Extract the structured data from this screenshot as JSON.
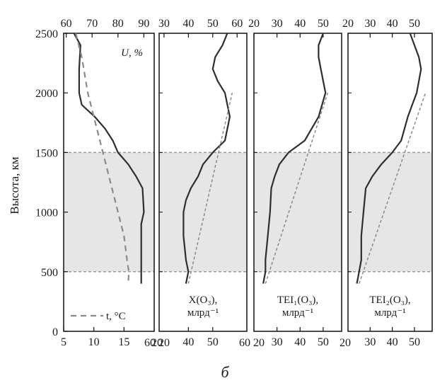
{
  "figure_label": "б",
  "colors": {
    "line": "#2e2e2e",
    "dashed_line": "#8a8a8a",
    "band_fill": "#e6e6e6",
    "band_border": "#9a9a9a",
    "frame": "#111111"
  },
  "chart_data": [
    {
      "type": "line",
      "ylabel": "Высота, км",
      "yticks": [
        "0",
        "500",
        "1000",
        "1500",
        "2000",
        "2500"
      ],
      "ylim": [
        0,
        2500
      ],
      "shaded_band": [
        500,
        1500
      ],
      "top_axis": {
        "xlim": [
          59,
          94
        ],
        "ticks": [
          60,
          70,
          80,
          90
        ],
        "tick_labels": [
          "60",
          "70",
          "80",
          "90"
        ]
      },
      "bottom_axis": {
        "xlim": [
          5,
          20
        ],
        "ticks": [
          5,
          10,
          15
        ],
        "tick_labels": [
          "5",
          "10",
          "15"
        ]
      },
      "label_top": "U, %",
      "label_bottom": "t, °C",
      "series": [
        {
          "name": "U, %",
          "style": "solid",
          "axis": "top",
          "points": [
            [
              63,
              2500
            ],
            [
              65.5,
              2400
            ],
            [
              65,
              2200
            ],
            [
              65,
              2000
            ],
            [
              66,
              1900
            ],
            [
              71,
              1800
            ],
            [
              75,
              1700
            ],
            [
              78,
              1600
            ],
            [
              80,
              1500
            ],
            [
              84,
              1400
            ],
            [
              87,
              1300
            ],
            [
              89.5,
              1200
            ],
            [
              90,
              1000
            ],
            [
              89,
              900
            ],
            [
              89,
              600
            ],
            [
              89,
              400
            ]
          ]
        },
        {
          "name": "t, °C",
          "style": "dashed",
          "axis": "bottom",
          "points": [
            [
              7,
              2500
            ],
            [
              8,
              2300
            ],
            [
              9,
              2000
            ],
            [
              10.5,
              1700
            ],
            [
              11.5,
              1500
            ],
            [
              12.5,
              1300
            ],
            [
              14,
              1000
            ],
            [
              15,
              800
            ],
            [
              15.5,
              600
            ],
            [
              15.8,
              500
            ],
            [
              15.7,
              400
            ]
          ]
        }
      ]
    },
    {
      "type": "line",
      "top_axis": {
        "xlim": [
          28,
          64
        ],
        "ticks": [
          30,
          40,
          50,
          60
        ],
        "tick_labels": [
          "30",
          "40",
          "50",
          "60"
        ]
      },
      "bottom_axis": {
        "xlim": [
          28,
          64
        ],
        "ticks": [
          40,
          50
        ],
        "tick_labels": [
          "40",
          "50"
        ]
      },
      "shared_tick_labels": [
        "20",
        "60 20"
      ],
      "label_lines": [
        "X(O₃),",
        "млрд⁻¹"
      ],
      "series": [
        {
          "name": "X(O₃)",
          "style": "solid",
          "points": [
            [
              56,
              2500
            ],
            [
              54,
              2400
            ],
            [
              51,
              2300
            ],
            [
              50,
              2200
            ],
            [
              52,
              2100
            ],
            [
              55,
              2000
            ],
            [
              57,
              1800
            ],
            [
              55,
              1600
            ],
            [
              50,
              1500
            ],
            [
              46,
              1400
            ],
            [
              44,
              1300
            ],
            [
              41,
              1200
            ],
            [
              39,
              1100
            ],
            [
              38,
              1000
            ],
            [
              38,
              800
            ],
            [
              39,
              600
            ],
            [
              40,
              500
            ],
            [
              39,
              400
            ]
          ]
        },
        {
          "name": "dashed fit",
          "style": "dashed",
          "points": [
            [
              40,
              400
            ],
            [
              58,
              2000
            ]
          ]
        }
      ]
    },
    {
      "type": "line",
      "top_axis": {
        "xlim": [
          20,
          58
        ],
        "ticks": [
          20,
          30,
          40,
          50
        ],
        "tick_labels": [
          "20",
          "30",
          "40",
          "50"
        ]
      },
      "bottom_axis": {
        "xlim": [
          20,
          58
        ],
        "ticks": [
          30,
          40,
          50
        ],
        "tick_labels": [
          "30",
          "40",
          "50"
        ]
      },
      "shared_tick_labels": [
        "60 20"
      ],
      "label_lines": [
        "TEI₁(O₃),",
        "млрд⁻¹"
      ],
      "series": [
        {
          "name": "TEI₁(O₃)",
          "style": "solid",
          "points": [
            [
              50,
              2500
            ],
            [
              48,
              2400
            ],
            [
              48,
              2300
            ],
            [
              49,
              2200
            ],
            [
              50,
              2100
            ],
            [
              51,
              2000
            ],
            [
              48,
              1800
            ],
            [
              42,
              1600
            ],
            [
              35,
              1500
            ],
            [
              31,
              1400
            ],
            [
              29,
              1300
            ],
            [
              27.5,
              1200
            ],
            [
              27,
              1000
            ],
            [
              26,
              800
            ],
            [
              25,
              600
            ],
            [
              25,
              500
            ],
            [
              24,
              400
            ]
          ]
        },
        {
          "name": "dashed fit",
          "style": "dashed",
          "points": [
            [
              25,
              400
            ],
            [
              52,
              2000
            ]
          ]
        }
      ]
    },
    {
      "type": "line",
      "top_axis": {
        "xlim": [
          20,
          58
        ],
        "ticks": [
          20,
          30,
          40,
          50
        ],
        "tick_labels": [
          "20",
          "30",
          "40",
          "50"
        ]
      },
      "bottom_axis": {
        "xlim": [
          20,
          58
        ],
        "ticks": [
          30,
          40,
          50
        ],
        "tick_labels": [
          "30",
          "40",
          "50"
        ]
      },
      "shared_tick_labels": [
        "20"
      ],
      "label_lines": [
        "TEI₂(O₃),",
        "млрд⁻¹"
      ],
      "series": [
        {
          "name": "TEI₂(O₃)",
          "style": "solid",
          "points": [
            [
              48,
              2500
            ],
            [
              50,
              2400
            ],
            [
              52,
              2300
            ],
            [
              53,
              2200
            ],
            [
              52,
              2100
            ],
            [
              51,
              2000
            ],
            [
              49,
              1900
            ],
            [
              47,
              1800
            ],
            [
              44,
              1600
            ],
            [
              40,
              1500
            ],
            [
              35,
              1400
            ],
            [
              31,
              1300
            ],
            [
              28,
              1200
            ],
            [
              27,
              1000
            ],
            [
              26,
              800
            ],
            [
              26,
              600
            ],
            [
              25,
              500
            ],
            [
              24,
              400
            ]
          ]
        },
        {
          "name": "dashed fit",
          "style": "dashed",
          "points": [
            [
              25,
              400
            ],
            [
              55,
              2000
            ]
          ]
        }
      ]
    }
  ]
}
